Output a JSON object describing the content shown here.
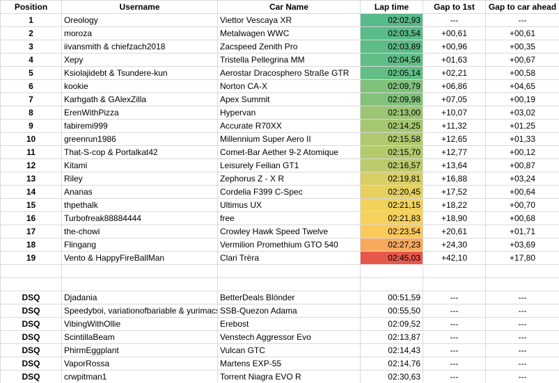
{
  "table": {
    "header": [
      "Position",
      "Username",
      "Car Name",
      "Lap time",
      "Gap to 1st",
      "Gap to car ahead"
    ],
    "rows": [
      [
        "1",
        "Oreology",
        "Viettor Vescaya XR",
        "02:02,93",
        "---",
        "---"
      ],
      [
        "2",
        "moroza",
        "Metalwagen WWC",
        "02:03,54",
        "+00,61",
        "+00,61"
      ],
      [
        "3",
        "iivansmith & chiefzach2018",
        "Zacspeed Zenith Pro",
        "02:03,89",
        "+00,96",
        "+00,35"
      ],
      [
        "4",
        "Xepy",
        "Tristella Pellegrina MM",
        "02:04,56",
        "+01,63",
        "+00,67"
      ],
      [
        "5",
        "Ksiolajidebt & Tsundere-kun",
        "Aerostar Dracosphero Straße GTR",
        "02:05,14",
        "+02,21",
        "+00,58"
      ],
      [
        "6",
        "kookie",
        "Norton CA-X",
        "02:09,79",
        "+06,86",
        "+04,65"
      ],
      [
        "7",
        "Karhgath & GAlexZilla",
        "Apex Summit",
        "02:09,98",
        "+07,05",
        "+00,19"
      ],
      [
        "8",
        "ErenWithPizza",
        "Hypervan",
        "02:13,00",
        "+10,07",
        "+03,02"
      ],
      [
        "9",
        "fabiremi999",
        "Accurate R70XX",
        "02:14,25",
        "+11,32",
        "+01,25"
      ],
      [
        "10",
        "greenrun1986",
        "Millennium Super Aero II",
        "02:15,58",
        "+12,65",
        "+01,33"
      ],
      [
        "11",
        "That-S-cop & Portalkat42",
        "Comet-Bar Aether 9-2 Atomique",
        "02:15,70",
        "+12,77",
        "+00,12"
      ],
      [
        "12",
        "Kitami",
        "Leisurely Feilian GT1",
        "02:16,57",
        "+13,64",
        "+00,87"
      ],
      [
        "13",
        "Riley",
        "Zephorus Z - X R",
        "02:19,81",
        "+16,88",
        "+03,24"
      ],
      [
        "14",
        "Ananas",
        "Cordelia F399 C-Spec",
        "02:20,45",
        "+17,52",
        "+00,64"
      ],
      [
        "15",
        "thpethalk",
        "Ultimus UX",
        "02:21,15",
        "+18,22",
        "+00,70"
      ],
      [
        "16",
        "Turbofreak88884444",
        "free",
        "02:21,83",
        "+18,90",
        "+00,68"
      ],
      [
        "17",
        "the-chowi",
        "Crowley Hawk Speed Twelve",
        "02:23,54",
        "+20,61",
        "+01,71"
      ],
      [
        "18",
        "Flingang",
        "Vermilion Promethium GTO 540",
        "02:27,23",
        "+24,30",
        "+03,69"
      ],
      [
        "19",
        "Vento & HappyFireBallMan",
        "Clari Trèra",
        "02:45,03",
        "+42,10",
        "+17,80"
      ]
    ],
    "lap_time_colors": [
      "#57bb8a",
      "#5abc88",
      "#5dbc87",
      "#60bd86",
      "#63be85",
      "#80c27c",
      "#82c27b",
      "#9cc574",
      "#a6c771",
      "#b1c96e",
      "#b4ca6d",
      "#bacb6b",
      "#d9cf62",
      "#e6d15e",
      "#f1d35c",
      "#f6d15b",
      "#fcc95b",
      "#f9a95c",
      "#e8574b"
    ],
    "dsq_rows": [
      [
        "DSQ",
        "Djadania",
        "BetterDeals Blönder",
        "00:51,59",
        "---",
        "---"
      ],
      [
        "DSQ",
        "Speedyboi, variationofbariable & yurimacs",
        "SSB-Quezon Adama",
        "00:55,50",
        "---",
        "---"
      ],
      [
        "DSQ",
        "VibingWithOllie",
        "Erebost",
        "02:09,52",
        "---",
        "---"
      ],
      [
        "DSQ",
        "ScintillaBeam",
        "Venstech Aggressor Evo",
        "02:13,87",
        "---",
        "---"
      ],
      [
        "DSQ",
        "PhirmEggplant",
        "Vulcan GTC",
        "02:14,43",
        "---",
        "---"
      ],
      [
        "DSQ",
        "VaporRossa",
        "Martens EXP-55",
        "02:14,76",
        "---",
        "---"
      ],
      [
        "DSQ",
        "crwpitman1",
        "Torrent Niagra EVO R",
        "02:30,63",
        "---",
        "---"
      ]
    ]
  }
}
